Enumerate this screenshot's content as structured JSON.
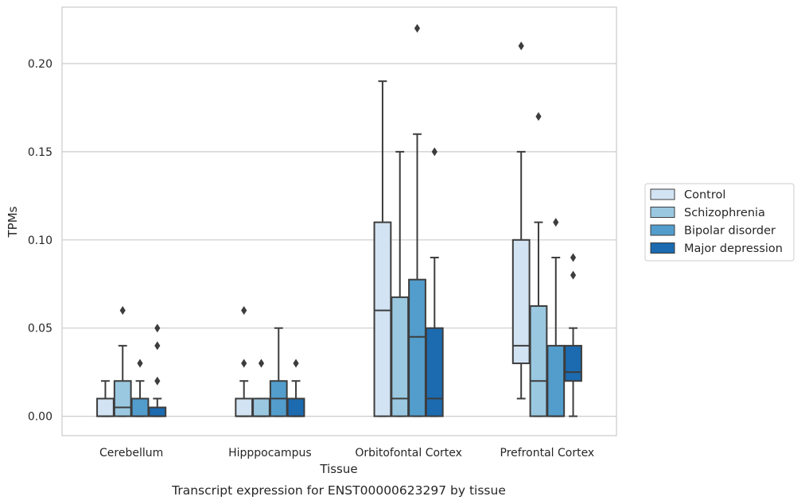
{
  "chart_data": {
    "type": "boxplot",
    "caption": "Transcript expression for ENST00000623297 by tissue",
    "xlabel": "Tissue",
    "ylabel": "TPMs",
    "ylim": [
      -0.011,
      0.232
    ],
    "yticks": [
      "0.00",
      "0.05",
      "0.10",
      "0.15",
      "0.20"
    ],
    "ytick_values": [
      0.0,
      0.05,
      0.1,
      0.15,
      0.2
    ],
    "grid": true,
    "legend_position": "right",
    "categories": [
      "Cerebellum",
      "Hipppocampus",
      "Orbitofontal Cortex",
      "Prefrontal Cortex"
    ],
    "series": [
      {
        "name": "Control",
        "color": "#d2e3f3",
        "boxes": [
          {
            "whislo": 0.0,
            "q1": 0.0,
            "med": 0.0,
            "q3": 0.01,
            "whishi": 0.02,
            "fliers": []
          },
          {
            "whislo": 0.0,
            "q1": 0.0,
            "med": 0.0,
            "q3": 0.01,
            "whishi": 0.02,
            "fliers": [
              0.03,
              0.06
            ]
          },
          {
            "whislo": 0.0,
            "q1": 0.0,
            "med": 0.06,
            "q3": 0.11,
            "whishi": 0.19,
            "fliers": []
          },
          {
            "whislo": 0.01,
            "q1": 0.03,
            "med": 0.04,
            "q3": 0.1,
            "whishi": 0.15,
            "fliers": [
              0.21
            ]
          }
        ]
      },
      {
        "name": "Schizophrenia",
        "color": "#9ac8e0",
        "boxes": [
          {
            "whislo": 0.0,
            "q1": 0.0,
            "med": 0.005,
            "q3": 0.02,
            "whishi": 0.04,
            "fliers": [
              0.06
            ]
          },
          {
            "whislo": 0.0,
            "q1": 0.0,
            "med": 0.0,
            "q3": 0.01,
            "whishi": 0.01,
            "fliers": [
              0.03
            ]
          },
          {
            "whislo": 0.0,
            "q1": 0.0,
            "med": 0.01,
            "q3": 0.0675,
            "whishi": 0.15,
            "fliers": []
          },
          {
            "whislo": 0.0,
            "q1": 0.0,
            "med": 0.02,
            "q3": 0.0625,
            "whishi": 0.11,
            "fliers": [
              0.17
            ]
          }
        ]
      },
      {
        "name": "Bipolar disorder",
        "color": "#529dcc",
        "boxes": [
          {
            "whislo": 0.0,
            "q1": 0.0,
            "med": 0.0,
            "q3": 0.01,
            "whishi": 0.02,
            "fliers": [
              0.03
            ]
          },
          {
            "whislo": 0.0,
            "q1": 0.0,
            "med": 0.01,
            "q3": 0.02,
            "whishi": 0.05,
            "fliers": []
          },
          {
            "whislo": 0.0,
            "q1": 0.0,
            "med": 0.045,
            "q3": 0.0775,
            "whishi": 0.16,
            "fliers": [
              0.22
            ]
          },
          {
            "whislo": 0.0,
            "q1": 0.0,
            "med": 0.0,
            "q3": 0.04,
            "whishi": 0.09,
            "fliers": [
              0.11
            ]
          }
        ]
      },
      {
        "name": "Major depression",
        "color": "#1c6aaf",
        "boxes": [
          {
            "whislo": 0.0,
            "q1": 0.0,
            "med": 0.0,
            "q3": 0.005,
            "whishi": 0.01,
            "fliers": [
              0.02,
              0.04,
              0.05
            ]
          },
          {
            "whislo": 0.0,
            "q1": 0.0,
            "med": 0.0,
            "q3": 0.01,
            "whishi": 0.02,
            "fliers": [
              0.03
            ]
          },
          {
            "whislo": 0.0,
            "q1": 0.0,
            "med": 0.01,
            "q3": 0.05,
            "whishi": 0.09,
            "fliers": [
              0.15
            ]
          },
          {
            "whislo": 0.0,
            "q1": 0.02,
            "med": 0.025,
            "q3": 0.04,
            "whishi": 0.05,
            "fliers": [
              0.08,
              0.09
            ]
          }
        ]
      }
    ]
  }
}
